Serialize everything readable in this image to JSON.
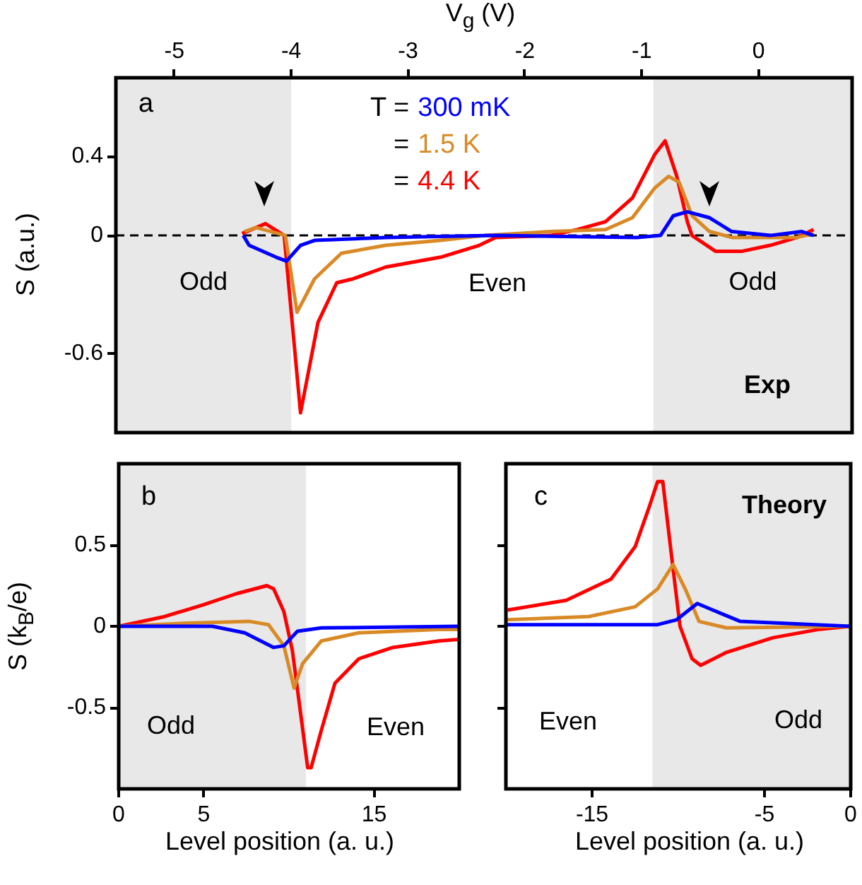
{
  "chart_data": [
    {
      "type": "line",
      "title": "a",
      "xlabel": "V$_{g}$ (V)",
      "ylabel": "S  (a.u.)",
      "legend_title": "T =",
      "legend": "top",
      "marker": "none",
      "line_style": "solid",
      "grid": false,
      "xlim": [
        -5.5,
        0.8
      ],
      "xticks": [
        -5,
        -4,
        -3,
        -2,
        -1,
        0
      ],
      "ylim": [
        -1.0,
        0.8
      ],
      "yticks": [
        0.4,
        0,
        -0.6
      ],
      "bands": [
        {
          "axis": "x",
          "from": -5.5,
          "to": -4.0,
          "label": "Odd",
          "color": "#e8e8e8"
        },
        {
          "axis": "x",
          "from": -0.9,
          "to": 0.8,
          "label": "Odd",
          "color": "#e8e8e8"
        }
      ],
      "ref_lines": [
        {
          "axis": "y",
          "value": 0,
          "color": "#000000",
          "line_style": "dashed"
        }
      ],
      "annotations": [
        "=",
        "=",
        "Even",
        "Exp"
      ],
      "series": [
        {
          "name": "300 mK",
          "color": "#0000ff",
          "x": [
            -4.41,
            -4.36,
            -4.13,
            -4.04,
            -3.92,
            -3.8,
            -3.19,
            -2.25,
            -1.04,
            -0.84,
            -0.73,
            -0.61,
            -0.42,
            -0.23,
            0.1,
            0.37,
            0.47
          ],
          "values": [
            0,
            -0.05,
            -0.11,
            -0.13,
            -0.05,
            -0.025,
            -0.01,
            0,
            -0.01,
            0,
            0.1,
            0.12,
            0.09,
            0.02,
            0,
            0.02,
            0
          ]
        },
        {
          "name": "1.5 K",
          "color": "#d98a26",
          "x": [
            -4.4,
            -4.3,
            -4.05,
            -3.95,
            -3.8,
            -3.57,
            -3.19,
            -2.72,
            -2.34,
            -1.78,
            -1.31,
            -1.08,
            -0.89,
            -0.77,
            -0.68,
            -0.57,
            -0.42,
            -0.23,
            0.33,
            0.47
          ],
          "values": [
            0.02,
            0.04,
            0,
            -0.39,
            -0.22,
            -0.09,
            -0.05,
            -0.025,
            0,
            0.02,
            0.03,
            0.09,
            0.24,
            0.3,
            0.27,
            0.1,
            0.02,
            -0.01,
            -0.01,
            0.01
          ]
        },
        {
          "name": "4.4 K",
          "color": "#ff0000",
          "x": [
            -4.42,
            -4.22,
            -4.06,
            -3.92,
            -3.77,
            -3.61,
            -3.47,
            -3.19,
            -2.72,
            -2.39,
            -2.25,
            -1.78,
            -1.55,
            -1.31,
            -1.08,
            -0.89,
            -0.8,
            -0.7,
            -0.61,
            -0.57,
            -0.37,
            -0.14,
            0.1,
            0.33,
            0.47
          ],
          "values": [
            0.01,
            0.06,
            0,
            -0.9,
            -0.44,
            -0.24,
            -0.22,
            -0.16,
            -0.11,
            -0.05,
            -0.01,
            0,
            0.03,
            0.07,
            0.19,
            0.41,
            0.48,
            0.3,
            0.07,
            0,
            -0.08,
            -0.08,
            -0.05,
            -0.01,
            0.03
          ]
        }
      ]
    },
    {
      "type": "line",
      "title": "b",
      "xlabel": "Level position (a. u.)",
      "ylabel": "S  (k$_{B}$/e)",
      "legend": false,
      "marker": "none",
      "line_style": "solid",
      "grid": false,
      "xlim": [
        0,
        20
      ],
      "xticks": [
        0,
        5,
        15
      ],
      "ylim": [
        -1,
        1
      ],
      "yticks": [
        0.5,
        0,
        -0.5
      ],
      "bands": [
        {
          "axis": "x",
          "from": 0,
          "to": 11,
          "label": "Odd",
          "color": "#e8e8e8"
        }
      ],
      "annotations": [
        "Even"
      ],
      "series": [
        {
          "color": "#0000ff",
          "x": [
            0,
            5.5,
            7.4,
            9.1,
            9.7,
            10.5,
            11.9,
            20
          ],
          "values": [
            0,
            0,
            -0.04,
            -0.13,
            -0.12,
            -0.03,
            -0.01,
            0
          ]
        },
        {
          "color": "#d98a26",
          "x": [
            0,
            4.1,
            7.7,
            8.8,
            9.7,
            10.3,
            10.8,
            11.9,
            14.1,
            18.8,
            20
          ],
          "values": [
            0,
            0.02,
            0.03,
            0.01,
            -0.12,
            -0.38,
            -0.23,
            -0.09,
            -0.04,
            -0.02,
            -0.02
          ]
        },
        {
          "color": "#ff0000",
          "x": [
            0,
            2.7,
            4.9,
            6.9,
            8.7,
            9.1,
            9.7,
            10.2,
            10.6,
            11.1,
            11.3,
            11.9,
            12.7,
            14.1,
            16.1,
            18.8,
            20
          ],
          "values": [
            0,
            0.06,
            0.13,
            0.2,
            0.25,
            0.23,
            0.09,
            -0.15,
            -0.47,
            -0.87,
            -0.87,
            -0.64,
            -0.35,
            -0.2,
            -0.13,
            -0.09,
            -0.08
          ]
        }
      ]
    },
    {
      "type": "line",
      "title": "c",
      "xlabel": "Level position (a. u.)",
      "legend": false,
      "marker": "none",
      "line_style": "solid",
      "grid": false,
      "tick_labels": "x",
      "xlim": [
        -20,
        0
      ],
      "xticks": [
        -15,
        -5,
        0
      ],
      "ylim": [
        -1,
        1
      ],
      "yticks": [
        0.5,
        0,
        -0.5
      ],
      "bands": [
        {
          "axis": "x",
          "from": -11.5,
          "to": 0,
          "label": "Odd",
          "color": "#e8e8e8"
        }
      ],
      "annotations": [
        "Even",
        "Theory"
      ],
      "series": [
        {
          "color": "#0000ff",
          "x": [
            -20,
            -11.2,
            -10.1,
            -8.9,
            -8,
            -6.4,
            0
          ],
          "values": [
            0.01,
            0.01,
            0.04,
            0.14,
            0.1,
            0.03,
            0
          ]
        },
        {
          "color": "#d98a26",
          "x": [
            -20,
            -15.2,
            -12.5,
            -11.2,
            -10.3,
            -9.6,
            -8.8,
            -7.2,
            0
          ],
          "values": [
            0.04,
            0.06,
            0.12,
            0.23,
            0.38,
            0.23,
            0.03,
            -0.01,
            0
          ]
        },
        {
          "color": "#ff0000",
          "x": [
            -19.9,
            -16.5,
            -13.9,
            -12.5,
            -11.7,
            -11.2,
            -10.9,
            -10.4,
            -9.9,
            -9.2,
            -8.7,
            -7.2,
            -4.5,
            -1.9,
            0
          ],
          "values": [
            0.1,
            0.16,
            0.29,
            0.49,
            0.73,
            0.89,
            0.89,
            0.44,
            0,
            -0.2,
            -0.24,
            -0.16,
            -0.07,
            -0.02,
            0
          ]
        }
      ]
    }
  ]
}
